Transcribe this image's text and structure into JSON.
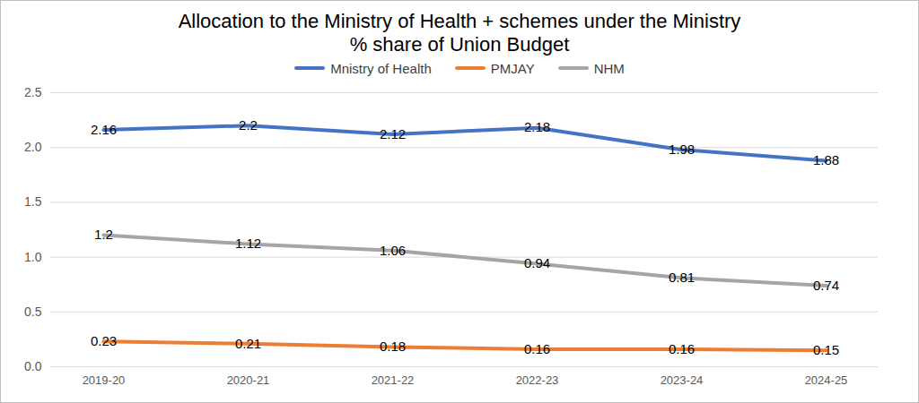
{
  "chart_data": {
    "type": "line",
    "title": "Allocation to the Ministry of Health + schemes under the Ministry",
    "subtitle": "% share of Union Budget",
    "categories": [
      "2019-20",
      "2020-21",
      "2021-22",
      "2022-23",
      "2023-24",
      "2024-25"
    ],
    "series": [
      {
        "name": "Mnistry of Health",
        "color": "#4472c4",
        "values": [
          2.16,
          2.2,
          2.12,
          2.18,
          1.98,
          1.88
        ]
      },
      {
        "name": "PMJAY",
        "color": "#ed7d31",
        "values": [
          0.23,
          0.21,
          0.18,
          0.16,
          0.16,
          0.15
        ]
      },
      {
        "name": "NHM",
        "color": "#a5a5a5",
        "values": [
          1.2,
          1.12,
          1.06,
          0.94,
          0.81,
          0.74
        ]
      }
    ],
    "ylim": [
      0,
      2.5
    ],
    "yticks": [
      0,
      0.5,
      1,
      1.5,
      2,
      2.5
    ],
    "grid": true,
    "legend": "top",
    "data_labels": true
  }
}
